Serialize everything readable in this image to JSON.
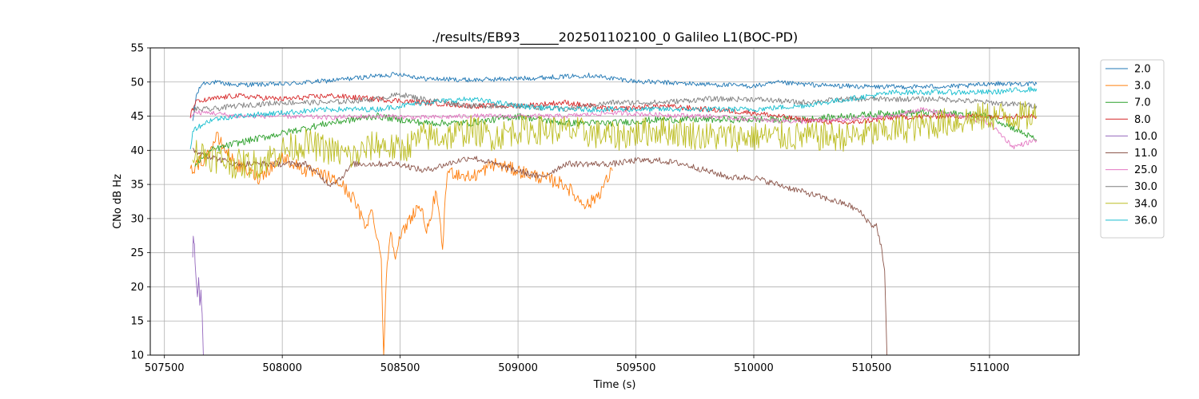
{
  "chart_data": {
    "type": "line",
    "title": "./results/EB93______202501102100_0 Galileo L1(BOC-PD)",
    "xlabel": "Time (s)",
    "ylabel": "CNo dB Hz",
    "xlim": [
      507440,
      511380
    ],
    "ylim": [
      10,
      55
    ],
    "xticks": [
      507500,
      508000,
      508500,
      509000,
      509500,
      510000,
      510500,
      511000
    ],
    "yticks": [
      10,
      15,
      20,
      25,
      30,
      35,
      40,
      45,
      50,
      55
    ],
    "grid": true,
    "legend_position": "right-outside-top",
    "series": [
      {
        "name": "2.0",
        "color": "#1f77b4",
        "noise": 0.35,
        "points": [
          [
            507620,
            44
          ],
          [
            507635,
            48
          ],
          [
            507660,
            49.8
          ],
          [
            507700,
            50
          ],
          [
            507800,
            49.6
          ],
          [
            508000,
            49.7
          ],
          [
            508200,
            50.2
          ],
          [
            508400,
            50.9
          ],
          [
            508500,
            51.2
          ],
          [
            508600,
            50.5
          ],
          [
            508800,
            50.3
          ],
          [
            509000,
            50.5
          ],
          [
            509200,
            50.8
          ],
          [
            509300,
            51
          ],
          [
            509500,
            50.1
          ],
          [
            509700,
            49.8
          ],
          [
            510000,
            49.4
          ],
          [
            510100,
            49.9
          ],
          [
            510300,
            49.5
          ],
          [
            510500,
            49.3
          ],
          [
            510700,
            49.3
          ],
          [
            510900,
            49.4
          ],
          [
            511000,
            49.8
          ],
          [
            511200,
            49.7
          ]
        ]
      },
      {
        "name": "3.0",
        "color": "#ff7f0e",
        "noise": 1.0,
        "points": [
          [
            507610,
            37
          ],
          [
            507640,
            38
          ],
          [
            507680,
            39
          ],
          [
            507720,
            42
          ],
          [
            507800,
            38
          ],
          [
            507900,
            36
          ],
          [
            508000,
            39
          ],
          [
            508100,
            37
          ],
          [
            508200,
            36
          ],
          [
            508250,
            35
          ],
          [
            508300,
            33
          ],
          [
            508350,
            29
          ],
          [
            508380,
            31
          ],
          [
            508400,
            28
          ],
          [
            508420,
            24
          ],
          [
            508430,
            10
          ],
          [
            508445,
            24
          ],
          [
            508460,
            28
          ],
          [
            508480,
            25
          ],
          [
            508500,
            27
          ],
          [
            508540,
            30
          ],
          [
            508580,
            32
          ],
          [
            508620,
            28
          ],
          [
            508650,
            34
          ],
          [
            508680,
            26
          ],
          [
            508700,
            37
          ],
          [
            508800,
            36
          ],
          [
            508900,
            38
          ],
          [
            509000,
            37
          ],
          [
            509100,
            36
          ],
          [
            509200,
            35
          ],
          [
            509250,
            33
          ],
          [
            509300,
            32
          ],
          [
            509350,
            34
          ],
          [
            509400,
            37
          ]
        ]
      },
      {
        "name": "7.0",
        "color": "#2ca02c",
        "noise": 0.5,
        "points": [
          [
            507630,
            38
          ],
          [
            507700,
            40
          ],
          [
            507800,
            41
          ],
          [
            508000,
            42.5
          ],
          [
            508200,
            44
          ],
          [
            508400,
            45
          ],
          [
            508600,
            44
          ],
          [
            508800,
            44
          ],
          [
            509000,
            45
          ],
          [
            509200,
            44
          ],
          [
            509400,
            44
          ],
          [
            509600,
            44.5
          ],
          [
            509800,
            44.5
          ],
          [
            510000,
            44.5
          ],
          [
            510200,
            44.5
          ],
          [
            510400,
            45
          ],
          [
            510600,
            45.5
          ],
          [
            510800,
            45.5
          ],
          [
            511000,
            45
          ],
          [
            511200,
            41.5
          ]
        ]
      },
      {
        "name": "8.0",
        "color": "#d62728",
        "noise": 0.4,
        "points": [
          [
            507610,
            45
          ],
          [
            507630,
            47
          ],
          [
            507700,
            47.5
          ],
          [
            507800,
            48
          ],
          [
            508000,
            47.5
          ],
          [
            508200,
            48
          ],
          [
            508400,
            47.5
          ],
          [
            508600,
            47
          ],
          [
            508800,
            46.5
          ],
          [
            509000,
            46.5
          ],
          [
            509200,
            47
          ],
          [
            509400,
            46
          ],
          [
            509600,
            46.5
          ],
          [
            509800,
            46
          ],
          [
            510000,
            45.5
          ],
          [
            510200,
            44.5
          ],
          [
            510400,
            44
          ],
          [
            510600,
            44.8
          ],
          [
            510800,
            45
          ],
          [
            511000,
            45
          ],
          [
            511200,
            45
          ]
        ]
      },
      {
        "name": "10.0",
        "color": "#9467bd",
        "noise": 1.2,
        "points": [
          [
            507620,
            25
          ],
          [
            507625,
            27.5
          ],
          [
            507630,
            24
          ],
          [
            507640,
            19
          ],
          [
            507645,
            22
          ],
          [
            507650,
            18
          ],
          [
            507655,
            19
          ],
          [
            507660,
            15
          ],
          [
            507665,
            10
          ]
        ]
      },
      {
        "name": "11.0",
        "color": "#8c564b",
        "noise": 0.45,
        "points": [
          [
            507620,
            40
          ],
          [
            507700,
            39
          ],
          [
            507800,
            38
          ],
          [
            507900,
            38
          ],
          [
            508000,
            38
          ],
          [
            508100,
            38
          ],
          [
            508200,
            35
          ],
          [
            508250,
            36
          ],
          [
            508300,
            38
          ],
          [
            508400,
            38
          ],
          [
            508500,
            38
          ],
          [
            508600,
            37
          ],
          [
            508700,
            38
          ],
          [
            508800,
            39
          ],
          [
            508900,
            38
          ],
          [
            509000,
            37
          ],
          [
            509100,
            36
          ],
          [
            509200,
            38
          ],
          [
            509300,
            38
          ],
          [
            509400,
            38
          ],
          [
            509500,
            38.5
          ],
          [
            509600,
            38.5
          ],
          [
            509700,
            38
          ],
          [
            509800,
            37
          ],
          [
            509900,
            36
          ],
          [
            510000,
            36
          ],
          [
            510100,
            35
          ],
          [
            510200,
            34
          ],
          [
            510300,
            33
          ],
          [
            510400,
            32
          ],
          [
            510450,
            31
          ],
          [
            510500,
            29
          ],
          [
            510520,
            29
          ],
          [
            510540,
            26
          ],
          [
            510555,
            22
          ],
          [
            510565,
            10
          ]
        ]
      },
      {
        "name": "25.0",
        "color": "#e377c2",
        "noise": 0.35,
        "points": [
          [
            507610,
            45
          ],
          [
            507630,
            45.5
          ],
          [
            507700,
            45.5
          ],
          [
            507800,
            45
          ],
          [
            508000,
            45
          ],
          [
            508200,
            44.8
          ],
          [
            508400,
            45
          ],
          [
            508600,
            44.8
          ],
          [
            508800,
            45
          ],
          [
            509000,
            45
          ],
          [
            509200,
            45
          ],
          [
            509400,
            45.5
          ],
          [
            509600,
            45.2
          ],
          [
            509800,
            45
          ],
          [
            510000,
            44.5
          ],
          [
            510200,
            44.2
          ],
          [
            510400,
            44.5
          ],
          [
            510600,
            45
          ],
          [
            510700,
            46
          ],
          [
            510800,
            45.5
          ],
          [
            511000,
            44
          ],
          [
            511100,
            40.5
          ],
          [
            511200,
            41.5
          ]
        ]
      },
      {
        "name": "30.0",
        "color": "#7f7f7f",
        "noise": 0.4,
        "points": [
          [
            507620,
            46
          ],
          [
            507700,
            46
          ],
          [
            507800,
            46.5
          ],
          [
            508000,
            47
          ],
          [
            508200,
            47
          ],
          [
            508400,
            47.5
          ],
          [
            508500,
            48.2
          ],
          [
            508600,
            47.5
          ],
          [
            508800,
            46.5
          ],
          [
            509000,
            46.5
          ],
          [
            509200,
            46
          ],
          [
            509400,
            47
          ],
          [
            509600,
            47
          ],
          [
            509800,
            47.5
          ],
          [
            510000,
            47.5
          ],
          [
            510200,
            47
          ],
          [
            510400,
            47.5
          ],
          [
            510600,
            47.5
          ],
          [
            510800,
            47.5
          ],
          [
            511000,
            47
          ],
          [
            511200,
            46.5
          ]
        ]
      },
      {
        "name": "34.0",
        "color": "#bcbd22",
        "noise": 2.2,
        "points": [
          [
            507620,
            40
          ],
          [
            507700,
            39
          ],
          [
            507800,
            38
          ],
          [
            507900,
            38
          ],
          [
            508000,
            40
          ],
          [
            508100,
            41
          ],
          [
            508200,
            40
          ],
          [
            508300,
            39
          ],
          [
            508400,
            41
          ],
          [
            508500,
            40
          ],
          [
            508600,
            42
          ],
          [
            508700,
            42
          ],
          [
            508800,
            43
          ],
          [
            508900,
            42
          ],
          [
            509000,
            43
          ],
          [
            509200,
            43
          ],
          [
            509400,
            42
          ],
          [
            509600,
            43
          ],
          [
            509800,
            42
          ],
          [
            510000,
            42
          ],
          [
            510200,
            42
          ],
          [
            510400,
            42
          ],
          [
            510600,
            43
          ],
          [
            510800,
            44
          ],
          [
            511000,
            45
          ],
          [
            511200,
            45
          ]
        ]
      },
      {
        "name": "36.0",
        "color": "#17becf",
        "noise": 0.4,
        "points": [
          [
            507610,
            40
          ],
          [
            507620,
            43
          ],
          [
            507700,
            44.5
          ],
          [
            507800,
            45
          ],
          [
            508000,
            45.5
          ],
          [
            508200,
            46
          ],
          [
            508400,
            46
          ],
          [
            508600,
            47
          ],
          [
            508800,
            47.5
          ],
          [
            509000,
            46.5
          ],
          [
            509200,
            46
          ],
          [
            509400,
            46
          ],
          [
            509600,
            46
          ],
          [
            509800,
            46
          ],
          [
            510000,
            46
          ],
          [
            510200,
            46.5
          ],
          [
            510400,
            47.5
          ],
          [
            510600,
            48.5
          ],
          [
            510800,
            48.5
          ],
          [
            511000,
            48.5
          ],
          [
            511200,
            49
          ]
        ]
      }
    ]
  }
}
